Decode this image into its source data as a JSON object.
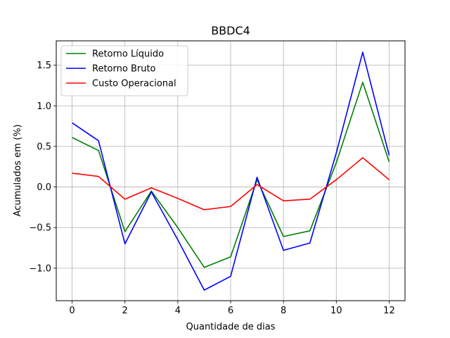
{
  "chart_data": {
    "type": "line",
    "title": "BBDC4",
    "xlabel": "Quantidade de dias",
    "ylabel": "Acumulados em (%)",
    "xlim": [
      -0.6,
      12.6
    ],
    "ylim": [
      -1.4,
      1.8
    ],
    "grid": true,
    "legend_position": "top-left",
    "x": [
      0,
      1,
      2,
      3,
      4,
      5,
      6,
      7,
      8,
      9,
      10,
      11,
      12
    ],
    "x_ticks": [
      0,
      2,
      4,
      6,
      8,
      10,
      12
    ],
    "x_tick_labels": [
      "0",
      "2",
      "4",
      "6",
      "8",
      "10",
      "12"
    ],
    "y_ticks": [
      -1.0,
      -0.5,
      0.0,
      0.5,
      1.0,
      1.5
    ],
    "y_tick_labels": [
      "−1.0",
      "−0.5",
      "0.0",
      "0.5",
      "1.0",
      "1.5"
    ],
    "series": [
      {
        "name": "Retorno Líquido",
        "color": "#008000",
        "values": [
          0.61,
          0.45,
          -0.55,
          -0.05,
          -0.5,
          -0.99,
          -0.86,
          0.09,
          -0.61,
          -0.54,
          0.3,
          1.29,
          0.31
        ]
      },
      {
        "name": "Retorno Bruto",
        "color": "#0000ff",
        "values": [
          0.79,
          0.57,
          -0.7,
          -0.06,
          -0.65,
          -1.27,
          -1.1,
          0.12,
          -0.78,
          -0.69,
          0.42,
          1.66,
          0.39
        ]
      },
      {
        "name": "Custo Operacional",
        "color": "#ff0000",
        "values": [
          0.17,
          0.13,
          -0.15,
          -0.01,
          -0.14,
          -0.28,
          -0.24,
          0.03,
          -0.17,
          -0.15,
          0.09,
          0.36,
          0.09
        ]
      }
    ]
  }
}
